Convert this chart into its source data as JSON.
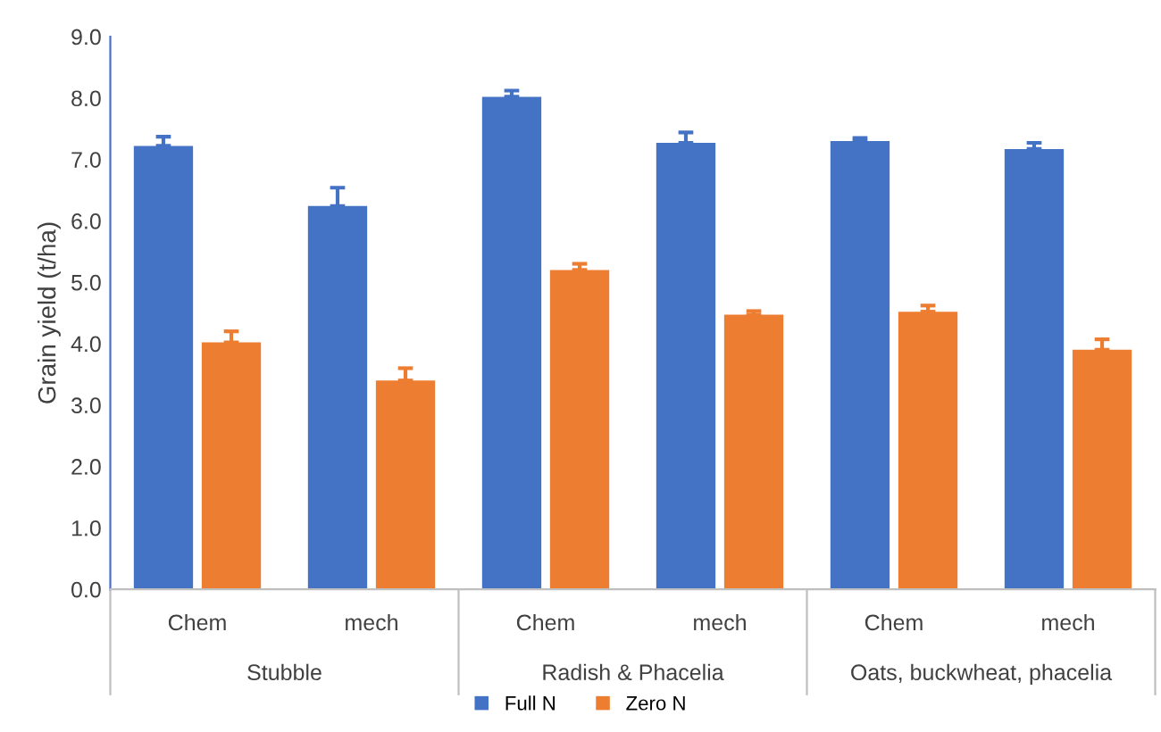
{
  "chart_data": {
    "type": "bar",
    "ylabel": "Grain yield (t/ha)",
    "categories": [
      "Chem",
      "mech",
      "Chem",
      "mech",
      "Chem",
      "mech"
    ],
    "series": [
      {
        "name": "Full N",
        "color": "#4472c4",
        "values": [
          7.22,
          6.24,
          8.02,
          7.27,
          7.3,
          7.17
        ],
        "errors": [
          0.15,
          0.3,
          0.1,
          0.17,
          0.05,
          0.1
        ]
      },
      {
        "name": "Zero N",
        "color": "#ed7d31",
        "values": [
          4.02,
          3.4,
          5.2,
          4.47,
          4.52,
          3.9
        ],
        "errors": [
          0.18,
          0.2,
          0.1,
          0.06,
          0.1,
          0.17
        ]
      }
    ],
    "annotations": [
      "Stubble",
      "Radish & Phacelia",
      "Oats, buckwheat, phacelia"
    ],
    "ylim": [
      0,
      9
    ],
    "yticks": [
      {
        "value": 0,
        "label": "0.0"
      },
      {
        "value": 1,
        "label": "1.0"
      },
      {
        "value": 2,
        "label": "2.0"
      },
      {
        "value": 3,
        "label": "3.0"
      },
      {
        "value": 4,
        "label": "4.0"
      },
      {
        "value": 5,
        "label": "5.0"
      },
      {
        "value": 6,
        "label": "6.0"
      },
      {
        "value": 7,
        "label": "7.0"
      },
      {
        "value": 8,
        "label": "8.0"
      },
      {
        "value": 9,
        "label": "9.0"
      }
    ],
    "grid": false,
    "legend": "bottom"
  }
}
